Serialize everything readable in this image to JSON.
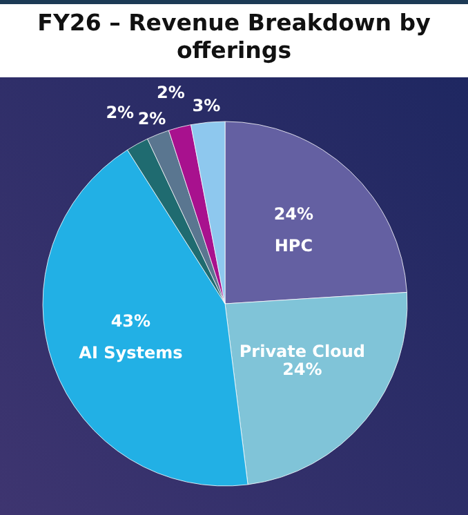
{
  "chart_data": {
    "type": "pie",
    "title": "FY26 – Revenue Breakdown by offerings",
    "categories": [
      "HPC",
      "Private Cloud",
      "AI Systems",
      null,
      null,
      null,
      null
    ],
    "values": [
      24,
      24,
      43,
      2,
      2,
      2,
      3
    ],
    "colors": [
      "#6460a2",
      "#80c4d8",
      "#22b0e5",
      "#1f6b70",
      "#5a7690",
      "#a8118e",
      "#8ec8ee"
    ],
    "value_labels": [
      "24%",
      "24%",
      "43%",
      "2%",
      "2%",
      "2%",
      "3%"
    ]
  }
}
